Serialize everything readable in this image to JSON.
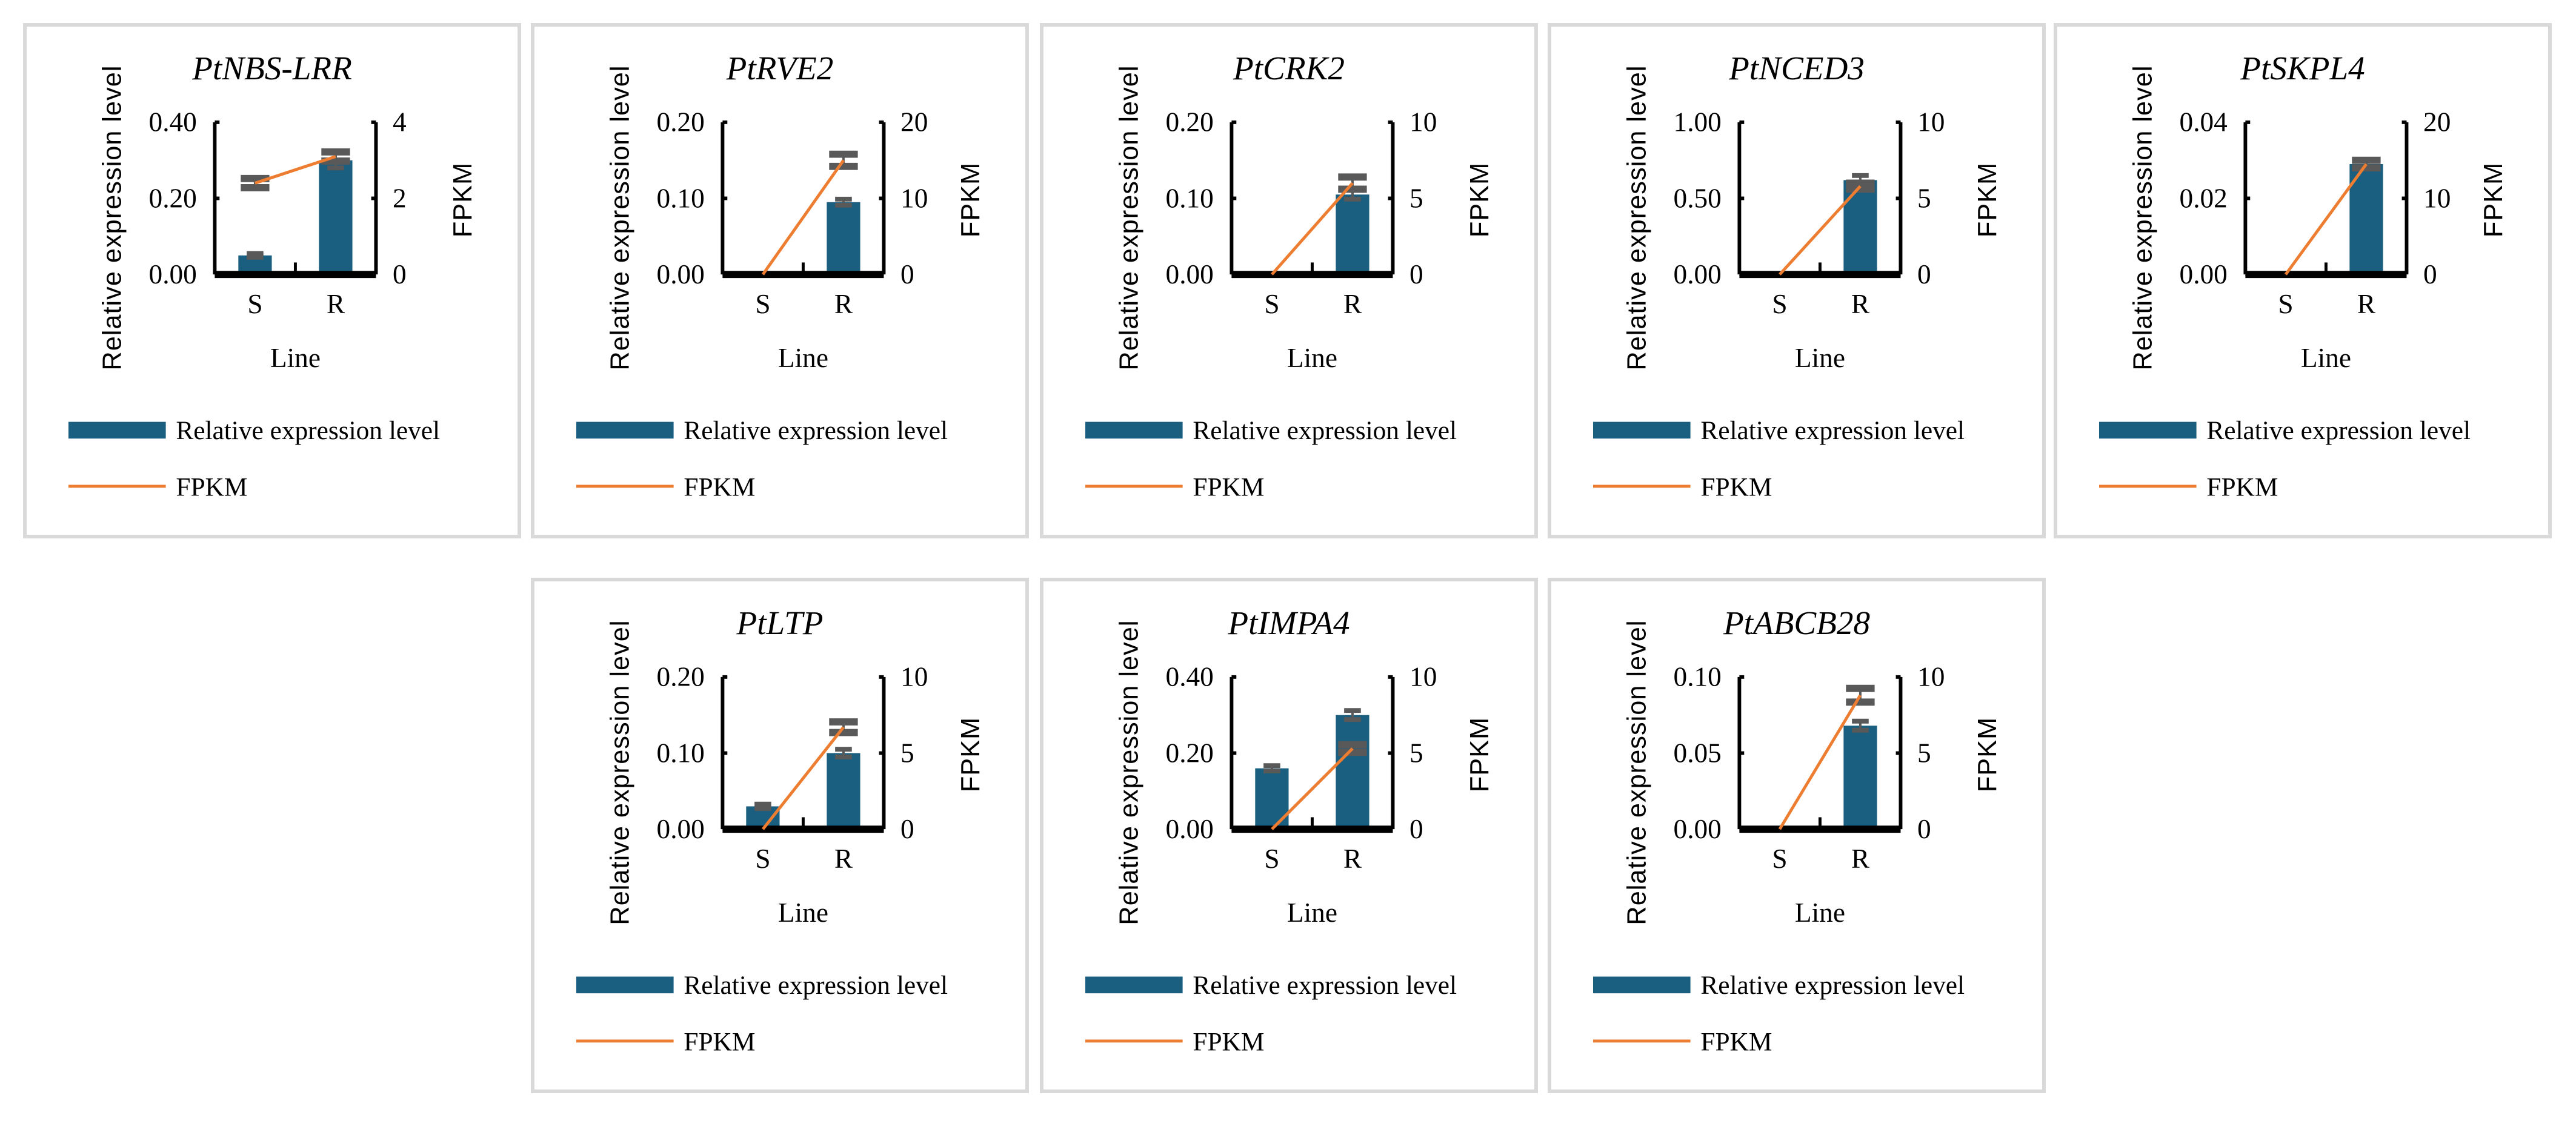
{
  "colors": {
    "bar": "#1a5e80",
    "line": "#ed7d31",
    "error": "#595959",
    "axis": "#000000",
    "border": "#d9d9d9"
  },
  "chart_data": [
    {
      "type": "bar+line",
      "title": "PtNBS-LRR",
      "categories": [
        "S",
        "R"
      ],
      "xlabel": "Line",
      "ylabel": "Relative expression level",
      "y2label": "FPKM",
      "ylim": [
        0,
        0.4
      ],
      "yticks": [
        "0.00",
        "0.20",
        "0.40"
      ],
      "y2lim": [
        0,
        4
      ],
      "y2ticks": [
        "0",
        "2",
        "4"
      ],
      "series": [
        {
          "name": "Relative expression level",
          "type": "bar",
          "values": [
            0.05,
            0.3
          ],
          "errors": [
            0.005,
            0.02
          ]
        },
        {
          "name": "FPKM",
          "type": "line",
          "values": [
            2.4,
            3.1
          ],
          "errors": [
            0.12,
            0.12
          ]
        }
      ],
      "legend": "bottom"
    },
    {
      "type": "bar+line",
      "title": "PtRVE2",
      "categories": [
        "S",
        "R"
      ],
      "xlabel": "Line",
      "ylabel": "Relative expression level",
      "y2label": "FPKM",
      "ylim": [
        0,
        0.2
      ],
      "yticks": [
        "0.00",
        "0.10",
        "0.20"
      ],
      "y2lim": [
        0,
        20
      ],
      "y2ticks": [
        "0",
        "10",
        "20"
      ],
      "series": [
        {
          "name": "Relative expression level",
          "type": "bar",
          "values": [
            0.0,
            0.095
          ],
          "errors": [
            0.0,
            0.004
          ]
        },
        {
          "name": "FPKM",
          "type": "line",
          "values": [
            0,
            15
          ],
          "errors": [
            0,
            0.8
          ]
        }
      ],
      "legend": "bottom"
    },
    {
      "type": "bar+line",
      "title": "PtCRK2",
      "categories": [
        "S",
        "R"
      ],
      "xlabel": "Line",
      "ylabel": "Relative expression level",
      "y2label": "FPKM",
      "ylim": [
        0,
        0.2
      ],
      "yticks": [
        "0.00",
        "0.10",
        "0.20"
      ],
      "y2lim": [
        0,
        10
      ],
      "y2ticks": [
        "0",
        "5",
        "10"
      ],
      "series": [
        {
          "name": "Relative expression level",
          "type": "bar",
          "values": [
            0.0,
            0.105
          ],
          "errors": [
            0.0,
            0.006
          ]
        },
        {
          "name": "FPKM",
          "type": "line",
          "values": [
            0,
            6
          ],
          "errors": [
            0,
            0.4
          ]
        }
      ],
      "legend": "bottom"
    },
    {
      "type": "bar+line",
      "title": "PtNCED3",
      "categories": [
        "S",
        "R"
      ],
      "xlabel": "Line",
      "ylabel": "Relative expression level",
      "y2label": "FPKM",
      "ylim": [
        0,
        1.0
      ],
      "yticks": [
        "0.00",
        "0.50",
        "1.00"
      ],
      "y2lim": [
        0,
        10
      ],
      "y2ticks": [
        "0",
        "5",
        "10"
      ],
      "series": [
        {
          "name": "Relative expression level",
          "type": "bar",
          "values": [
            0.0,
            0.62
          ],
          "errors": [
            0.0,
            0.03
          ]
        },
        {
          "name": "FPKM",
          "type": "line",
          "values": [
            0,
            5.8
          ],
          "errors": [
            0,
            0.2
          ]
        }
      ],
      "legend": "bottom"
    },
    {
      "type": "bar+line",
      "title": "PtSKPL4",
      "categories": [
        "S",
        "R"
      ],
      "xlabel": "Line",
      "ylabel": "Relative expression level",
      "y2label": "FPKM",
      "ylim": [
        0,
        0.04
      ],
      "yticks": [
        "0.00",
        "0.02",
        "0.04"
      ],
      "y2lim": [
        0,
        20
      ],
      "y2ticks": [
        "0",
        "10",
        "20"
      ],
      "series": [
        {
          "name": "Relative expression level",
          "type": "bar",
          "values": [
            0.0,
            0.029
          ],
          "errors": [
            0.0,
            0.001
          ]
        },
        {
          "name": "FPKM",
          "type": "line",
          "values": [
            0,
            14.5
          ],
          "errors": [
            0,
            0.5
          ]
        }
      ],
      "legend": "bottom"
    },
    {
      "type": "bar+line",
      "title": "PtLTP",
      "categories": [
        "S",
        "R"
      ],
      "xlabel": "Line",
      "ylabel": "Relative expression level",
      "y2label": "FPKM",
      "ylim": [
        0,
        0.2
      ],
      "yticks": [
        "0.00",
        "0.10",
        "0.20"
      ],
      "y2lim": [
        0,
        10
      ],
      "y2ticks": [
        "0",
        "5",
        "10"
      ],
      "series": [
        {
          "name": "Relative expression level",
          "type": "bar",
          "values": [
            0.03,
            0.1
          ],
          "errors": [
            0.003,
            0.005
          ]
        },
        {
          "name": "FPKM",
          "type": "line",
          "values": [
            0,
            6.7
          ],
          "errors": [
            0,
            0.35
          ]
        }
      ],
      "legend": "bottom"
    },
    {
      "type": "bar+line",
      "title": "PtIMPA4",
      "categories": [
        "S",
        "R"
      ],
      "xlabel": "Line",
      "ylabel": "Relative expression level",
      "y2label": "FPKM",
      "ylim": [
        0,
        0.4
      ],
      "yticks": [
        "0.00",
        "0.20",
        "0.40"
      ],
      "y2lim": [
        0,
        10
      ],
      "y2ticks": [
        "0",
        "5",
        "10"
      ],
      "series": [
        {
          "name": "Relative expression level",
          "type": "bar",
          "values": [
            0.16,
            0.3
          ],
          "errors": [
            0.007,
            0.012
          ]
        },
        {
          "name": "FPKM",
          "type": "line",
          "values": [
            0,
            5.3
          ],
          "errors": [
            0,
            0.25
          ]
        }
      ],
      "legend": "bottom"
    },
    {
      "type": "bar+line",
      "title": "PtABCB28",
      "categories": [
        "S",
        "R"
      ],
      "xlabel": "Line",
      "ylabel": "Relative expression level",
      "y2label": "FPKM",
      "ylim": [
        0,
        0.1
      ],
      "yticks": [
        "0.00",
        "0.05",
        "0.10"
      ],
      "y2lim": [
        0,
        10
      ],
      "y2ticks": [
        "0",
        "5",
        "10"
      ],
      "series": [
        {
          "name": "Relative expression level",
          "type": "bar",
          "values": [
            0.0,
            0.068
          ],
          "errors": [
            0.0,
            0.003
          ]
        },
        {
          "name": "FPKM",
          "type": "line",
          "values": [
            0,
            8.8
          ],
          "errors": [
            0,
            0.45
          ]
        }
      ],
      "legend": "bottom"
    }
  ]
}
